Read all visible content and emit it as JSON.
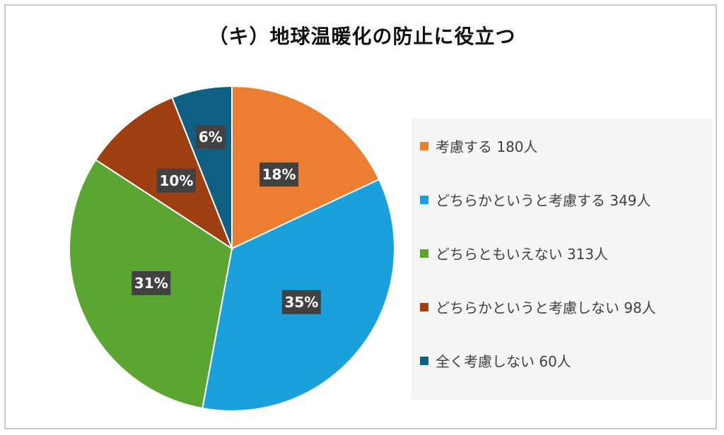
{
  "chart_data": {
    "type": "pie",
    "title": "（キ）地球温暖化の防止に役立つ",
    "categories": [
      "考慮する",
      "どちらかというと考慮する",
      "どちらともいえない",
      "どちらかというと考慮しない",
      "全く考慮しない"
    ],
    "values": [
      180,
      349,
      313,
      98,
      60
    ],
    "percent_labels": [
      "18%",
      "35%",
      "31%",
      "10%",
      "6%"
    ],
    "legend_labels": [
      "考慮する 180人",
      "どちらかというと考慮する 349人",
      "どちらともいえない 313人",
      "どちらかというと考慮しない 98人",
      "全く考慮しない 60人"
    ],
    "colors": [
      "#ed7d31",
      "#1aa0db",
      "#5ba532",
      "#9e3f12",
      "#0f5f83"
    ],
    "legend_placement": "right",
    "label_style": "white bold text on dark patterned boxes"
  }
}
